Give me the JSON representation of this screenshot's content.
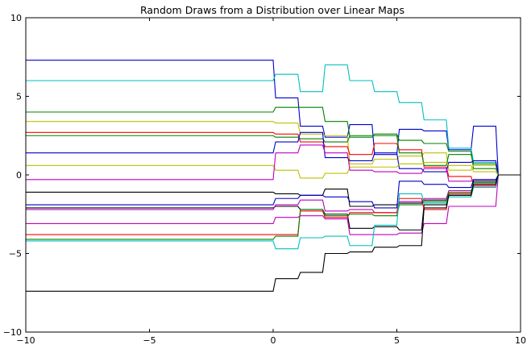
{
  "chart_data": {
    "type": "line",
    "title": "Random Draws from a Distribution over Linear Maps",
    "xlabel": "",
    "ylabel": "",
    "xlim": [
      -10,
      10
    ],
    "ylim": [
      -10,
      10
    ],
    "xticks": [
      -10,
      -5,
      0,
      5,
      10
    ],
    "yticks": [
      -10,
      -5,
      0,
      5,
      10
    ],
    "xtick_labels": [
      "−10",
      "−5",
      "0",
      "5",
      "10"
    ],
    "ytick_labels": [
      "−10",
      "−5",
      "0",
      "5",
      "10"
    ],
    "grid": false,
    "x": [
      -10,
      0,
      0.1,
      1,
      1.1,
      2,
      2.1,
      3,
      3.1,
      4,
      4.1,
      5,
      5.1,
      6,
      6.1,
      7,
      7.1,
      8,
      8.1,
      9,
      9.1,
      10
    ],
    "series": [
      {
        "color": "#0000cc",
        "values": [
          7.3,
          7.3,
          4.9,
          4.9,
          3.1,
          3.1,
          2.4,
          2.4,
          3.2,
          3.2,
          1.3,
          1.3,
          2.9,
          2.9,
          2.8,
          2.8,
          1.6,
          1.6,
          3.1,
          3.1,
          0,
          0
        ]
      },
      {
        "color": "#00bfbf",
        "values": [
          6.0,
          6.0,
          6.4,
          6.4,
          5.3,
          5.3,
          7.0,
          7.0,
          6.0,
          6.0,
          5.3,
          5.3,
          4.6,
          4.6,
          3.5,
          3.5,
          1.7,
          1.7,
          0.8,
          0.8,
          0,
          0
        ]
      },
      {
        "color": "#008000",
        "values": [
          4.0,
          4.0,
          4.3,
          4.3,
          4.3,
          4.3,
          3.4,
          3.4,
          2.4,
          2.4,
          2.6,
          2.6,
          2.2,
          2.2,
          2.0,
          2.0,
          1.5,
          1.5,
          0.4,
          0.4,
          0,
          0
        ]
      },
      {
        "color": "#bfbf00",
        "values": [
          3.4,
          3.4,
          3.3,
          3.3,
          2.6,
          2.6,
          2.5,
          2.5,
          0.7,
          0.7,
          1.0,
          1.0,
          1.2,
          1.2,
          1.4,
          1.4,
          0.3,
          0.3,
          0.6,
          0.6,
          0,
          0
        ]
      },
      {
        "color": "#ff0000",
        "values": [
          2.7,
          2.7,
          2.6,
          2.6,
          2.1,
          2.1,
          1.8,
          1.8,
          1.3,
          1.3,
          2.0,
          2.0,
          1.6,
          1.6,
          0.5,
          0.5,
          -0.1,
          -0.1,
          -0.6,
          -0.6,
          0,
          0
        ]
      },
      {
        "color": "#008000",
        "values": [
          2.5,
          2.5,
          2.4,
          2.4,
          2.3,
          2.3,
          2.1,
          2.1,
          2.5,
          2.5,
          2.5,
          2.5,
          1.4,
          1.4,
          0.6,
          0.6,
          1.3,
          1.3,
          0.7,
          0.7,
          0,
          0
        ]
      },
      {
        "color": "#0000cc",
        "values": [
          1.4,
          1.4,
          2.1,
          2.1,
          2.7,
          2.7,
          1.1,
          1.1,
          0.9,
          0.9,
          1.4,
          1.4,
          0.4,
          0.4,
          0.2,
          0.2,
          0.8,
          0.8,
          0.9,
          0.9,
          0,
          0
        ]
      },
      {
        "color": "#bfbf00",
        "values": [
          0.6,
          0.6,
          0.3,
          0.3,
          -0.2,
          -0.2,
          0.1,
          0.1,
          0.5,
          0.5,
          0.5,
          0.5,
          0.7,
          0.7,
          0.8,
          0.8,
          0.6,
          0.6,
          0.2,
          0.2,
          0,
          0
        ]
      },
      {
        "color": "#bf00bf",
        "values": [
          -0.3,
          -0.3,
          1.4,
          1.4,
          1.9,
          1.9,
          1.4,
          1.4,
          0.3,
          0.3,
          0.2,
          0.2,
          0.1,
          0.1,
          0.4,
          0.4,
          -0.4,
          -0.4,
          -0.3,
          -0.3,
          0,
          0
        ]
      },
      {
        "color": "#000000",
        "values": [
          -1.1,
          -1.1,
          -1.2,
          -1.2,
          -1.3,
          -1.3,
          -0.9,
          -0.9,
          -2.0,
          -2.0,
          -1.9,
          -1.9,
          -1.8,
          -1.8,
          -1.6,
          -1.6,
          -1.3,
          -1.3,
          -0.4,
          -0.4,
          0,
          0
        ]
      },
      {
        "color": "#0000cc",
        "values": [
          -1.9,
          -1.9,
          -1.5,
          -1.5,
          -1.3,
          -1.3,
          -1.4,
          -1.4,
          -1.7,
          -1.7,
          -2.1,
          -2.1,
          -0.4,
          -0.4,
          -0.6,
          -0.6,
          -0.8,
          -0.8,
          -0.3,
          -0.3,
          0,
          0
        ]
      },
      {
        "color": "#000000",
        "values": [
          -2.1,
          -2.1,
          -2.0,
          -2.0,
          -2.2,
          -2.2,
          -2.5,
          -2.5,
          -3.4,
          -3.4,
          -3.3,
          -3.3,
          -3.5,
          -3.5,
          -1.9,
          -1.9,
          -1.2,
          -1.2,
          -0.5,
          -0.5,
          0,
          0
        ]
      },
      {
        "color": "#bf00bf",
        "values": [
          -2.2,
          -2.2,
          -1.9,
          -1.9,
          -1.6,
          -1.6,
          -2.3,
          -2.3,
          -2.2,
          -2.2,
          -2.4,
          -2.4,
          -1.7,
          -1.7,
          -1.5,
          -1.5,
          -1.0,
          -1.0,
          -0.7,
          -0.7,
          0,
          0
        ]
      },
      {
        "color": "#bf00bf",
        "values": [
          -3.1,
          -3.1,
          -2.7,
          -2.7,
          -2.6,
          -2.6,
          -2.8,
          -2.8,
          -3.8,
          -3.8,
          -3.8,
          -3.8,
          -3.7,
          -3.7,
          -3.1,
          -3.1,
          -2.0,
          -2.0,
          -2.0,
          -2.0,
          0,
          0
        ]
      },
      {
        "color": "#ff0000",
        "values": [
          -3.8,
          -3.8,
          -3.8,
          -3.8,
          -2.3,
          -2.3,
          -2.7,
          -2.7,
          -2.4,
          -2.4,
          -2.4,
          -2.4,
          -1.5,
          -1.5,
          -2.2,
          -2.2,
          -1.2,
          -1.2,
          -0.7,
          -0.7,
          0,
          0
        ]
      },
      {
        "color": "#008000",
        "values": [
          -4.1,
          -4.1,
          -3.9,
          -3.9,
          -2.2,
          -2.2,
          -2.6,
          -2.6,
          -2.5,
          -2.5,
          -2.6,
          -2.6,
          -1.9,
          -1.9,
          -1.7,
          -1.7,
          -1.1,
          -1.1,
          -0.5,
          -0.5,
          0,
          0
        ]
      },
      {
        "color": "#00bfbf",
        "values": [
          -4.2,
          -4.2,
          -4.7,
          -4.7,
          -4.0,
          -4.0,
          -3.9,
          -3.9,
          -4.5,
          -4.5,
          -3.2,
          -3.2,
          -1.2,
          -1.2,
          -1.8,
          -1.8,
          -1.4,
          -1.4,
          -0.8,
          -0.8,
          0,
          0
        ]
      },
      {
        "color": "#000000",
        "values": [
          -7.4,
          -7.4,
          -6.6,
          -6.6,
          -6.2,
          -6.2,
          -5.0,
          -5.0,
          -4.9,
          -4.9,
          -4.6,
          -4.6,
          -4.5,
          -4.5,
          -2.1,
          -2.1,
          -1.3,
          -1.3,
          -0.6,
          -0.6,
          0,
          0
        ]
      }
    ]
  }
}
